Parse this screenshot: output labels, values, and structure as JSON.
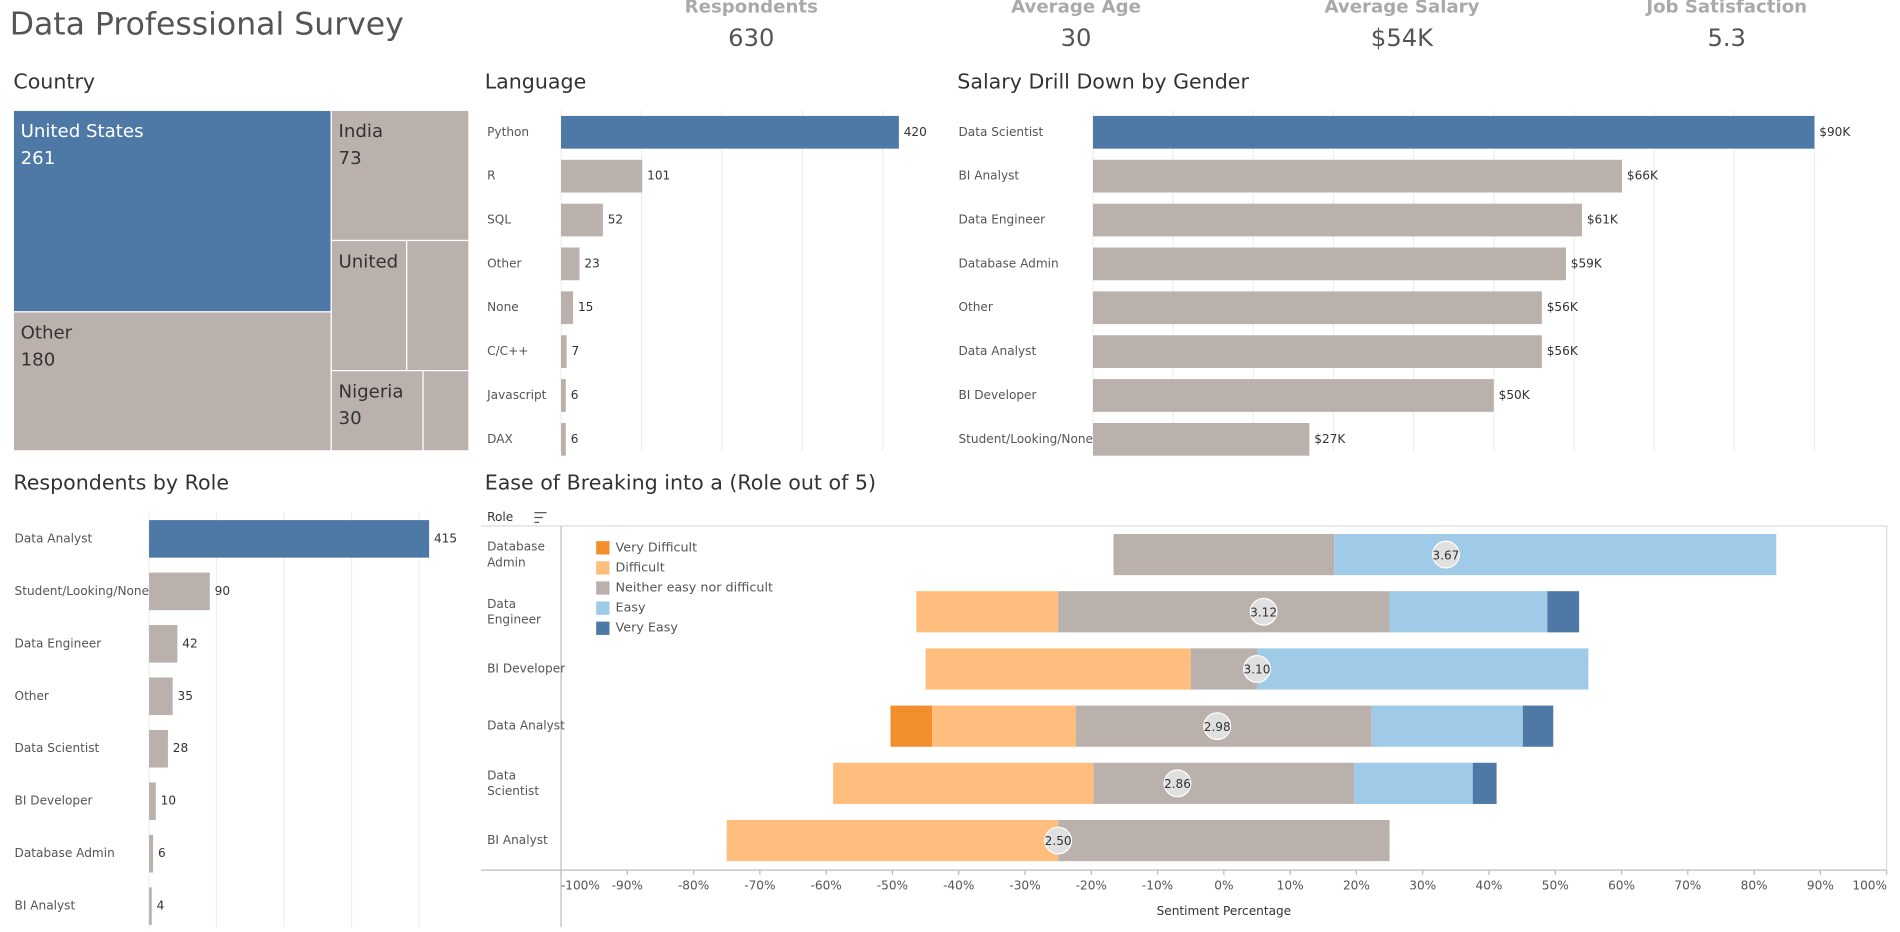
{
  "header": {
    "title": "Data Professional Survey",
    "kpis": [
      {
        "label": "Respondents",
        "value": "630"
      },
      {
        "label": "Average Age",
        "value": "30"
      },
      {
        "label": "Average Salary",
        "value": "$54K"
      },
      {
        "label": "Job Satisfaction",
        "value": "5.3"
      }
    ]
  },
  "chart_data": [
    {
      "type": "treemap",
      "title": "Country",
      "categories": [
        "United States",
        "Other",
        "India",
        "United",
        null,
        "Nigeria",
        null
      ],
      "values": [
        261,
        180,
        73,
        40,
        33,
        30,
        15
      ],
      "colors": [
        "#4e79a7",
        "#bab0ac",
        "#bab0ac",
        "#bab0ac",
        "#bab0ac",
        "#bab0ac",
        "#bab0ac"
      ]
    },
    {
      "type": "hbar",
      "title": "Language",
      "categories": [
        "Python",
        "R",
        "SQL",
        "Other",
        "None",
        "C/C++",
        "Javascript",
        "DAX"
      ],
      "values": [
        420,
        101,
        52,
        23,
        15,
        7,
        6,
        6
      ],
      "colors": [
        "#4e79a7",
        "#bab0ac",
        "#bab0ac",
        "#bab0ac",
        "#bab0ac",
        "#bab0ac",
        "#bab0ac",
        "#bab0ac"
      ],
      "xlim": [
        0,
        470
      ],
      "xticks": [
        0,
        100,
        200,
        300,
        400
      ],
      "grid": true
    },
    {
      "type": "hbar",
      "title": "Salary Drill Down by Gender",
      "categories": [
        "Data Scientist",
        "BI Analyst",
        "Data Engineer",
        "Database Admin",
        "Other",
        "Data Analyst",
        "BI Developer",
        "Student/Looking/None"
      ],
      "values": [
        90000,
        66000,
        61000,
        59000,
        56000,
        56000,
        50000,
        27000
      ],
      "value_labels": [
        "$90K",
        "$66K",
        "$61K",
        "$59K",
        "$56K",
        "$56K",
        "$50K",
        "$27K"
      ],
      "colors": [
        "#4e79a7",
        "#bab0ac",
        "#bab0ac",
        "#bab0ac",
        "#bab0ac",
        "#bab0ac",
        "#bab0ac",
        "#bab0ac"
      ],
      "xlim": [
        0,
        97500
      ],
      "xticks": [
        0,
        10000,
        20000,
        30000,
        40000,
        50000,
        60000,
        70000,
        80000,
        90000
      ],
      "grid": true
    },
    {
      "type": "hbar",
      "title": "Respondents by Role",
      "categories": [
        "Data Analyst",
        "Student/Looking/None",
        "Data Engineer",
        "Other",
        "Data Scientist",
        "BI Developer",
        "Database Admin",
        "BI Analyst"
      ],
      "values": [
        415,
        90,
        42,
        35,
        28,
        10,
        6,
        4
      ],
      "colors": [
        "#4e79a7",
        "#bab0ac",
        "#bab0ac",
        "#bab0ac",
        "#bab0ac",
        "#bab0ac",
        "#bab0ac",
        "#bab0ac"
      ],
      "xlim": [
        0,
        474
      ],
      "xticks": [
        0,
        100,
        200,
        300,
        400
      ],
      "grid": true
    },
    {
      "type": "diverging",
      "title": "Ease of Breaking into a (Role out of 5)",
      "y_header": "Role",
      "xlabel": "Sentiment Percentage",
      "categories": [
        "Database Admin",
        "Data Engineer",
        "BI Developer",
        "Data Analyst",
        "Data Scientist",
        "BI Analyst"
      ],
      "series": [
        {
          "name": "Very Difficult",
          "color": "#f28e2b",
          "values": [
            0,
            0,
            0,
            6.3,
            0,
            0
          ]
        },
        {
          "name": "Difficult",
          "color": "#ffbe7d",
          "values": [
            0,
            21.4,
            40,
            21.7,
            39.3,
            50
          ]
        },
        {
          "name": "Neither easy nor difficult",
          "color": "#bab0ac",
          "values": [
            33.3,
            50,
            10,
            44.6,
            39.3,
            50
          ]
        },
        {
          "name": "Easy",
          "color": "#a0cbe8",
          "values": [
            66.7,
            23.8,
            50,
            22.8,
            17.9,
            0
          ]
        },
        {
          "name": "Very Easy",
          "color": "#4e79a7",
          "values": [
            0,
            4.8,
            0,
            4.6,
            3.6,
            0
          ]
        }
      ],
      "scores": [
        3.67,
        3.12,
        3.1,
        2.98,
        2.86,
        2.5
      ],
      "score_labels": [
        "3.67",
        "3.12",
        "3.10",
        "2.98",
        "2.86",
        "2.50"
      ],
      "xlim": [
        -100,
        100
      ],
      "xticks": [
        {
          "value": -100,
          "label": "-100%"
        },
        {
          "value": -90,
          "label": "-90%"
        },
        {
          "value": -80,
          "label": "-80%"
        },
        {
          "value": -70,
          "label": "-70%"
        },
        {
          "value": -60,
          "label": "-60%"
        },
        {
          "value": -50,
          "label": "-50%"
        },
        {
          "value": -40,
          "label": "-40%"
        },
        {
          "value": -30,
          "label": "-30%"
        },
        {
          "value": -20,
          "label": "-20%"
        },
        {
          "value": -10,
          "label": "-10%"
        },
        {
          "value": 0,
          "label": "0%"
        },
        {
          "value": 10,
          "label": "10%"
        },
        {
          "value": 20,
          "label": "20%"
        },
        {
          "value": 30,
          "label": "30%"
        },
        {
          "value": 40,
          "label": "40%"
        },
        {
          "value": 50,
          "label": "50%"
        },
        {
          "value": 60,
          "label": "60%"
        },
        {
          "value": 70,
          "label": "70%"
        },
        {
          "value": 80,
          "label": "80%"
        },
        {
          "value": 90,
          "label": "90%"
        },
        {
          "value": 100,
          "label": "100%"
        }
      ],
      "legend": "top-left"
    }
  ]
}
